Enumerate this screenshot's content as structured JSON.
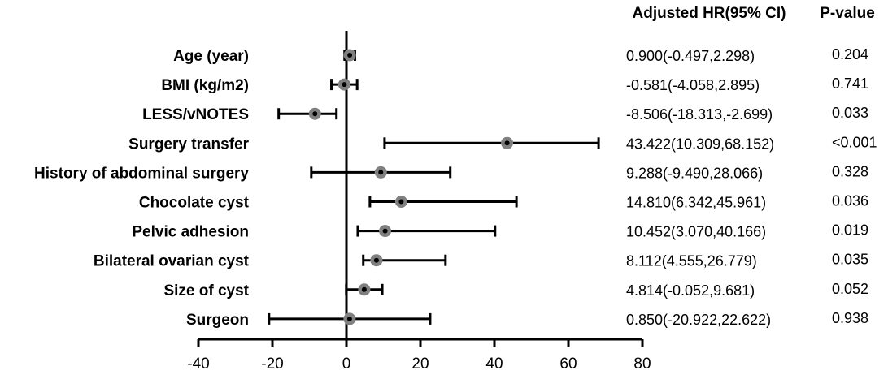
{
  "chart_data": {
    "type": "forest",
    "headers": {
      "estimate": "Adjusted HR(95% CI)",
      "p_value": "P-value"
    },
    "rows": [
      {
        "label": "Age (year)",
        "estimate": 0.9,
        "lower": -0.497,
        "upper": 2.298,
        "ci_text": "0.900(-0.497,2.298)",
        "p_text": "0.204"
      },
      {
        "label": "BMI (kg/m2)",
        "estimate": -0.581,
        "lower": -4.058,
        "upper": 2.895,
        "ci_text": "-0.581(-4.058,2.895)",
        "p_text": "0.741"
      },
      {
        "label": "LESS/vNOTES",
        "estimate": -8.506,
        "lower": -18.313,
        "upper": -2.699,
        "ci_text": "-8.506(-18.313,-2.699)",
        "p_text": "0.033"
      },
      {
        "label": "Surgery transfer",
        "estimate": 43.422,
        "lower": 10.309,
        "upper": 68.152,
        "ci_text": "43.422(10.309,68.152)",
        "p_text": "<0.001"
      },
      {
        "label": "History of abdominal surgery",
        "estimate": 9.288,
        "lower": -9.49,
        "upper": 28.066,
        "ci_text": "9.288(-9.490,28.066)",
        "p_text": "0.328"
      },
      {
        "label": "Chocolate cyst",
        "estimate": 14.81,
        "lower": 6.342,
        "upper": 45.961,
        "ci_text": "14.810(6.342,45.961)",
        "p_text": "0.036"
      },
      {
        "label": "Pelvic adhesion",
        "estimate": 10.452,
        "lower": 3.07,
        "upper": 40.166,
        "ci_text": "10.452(3.070,40.166)",
        "p_text": "0.019"
      },
      {
        "label": "Bilateral ovarian cyst",
        "estimate": 8.112,
        "lower": 4.555,
        "upper": 26.779,
        "ci_text": "8.112(4.555,26.779)",
        "p_text": "0.035"
      },
      {
        "label": "Size of cyst",
        "estimate": 4.814,
        "lower": -0.052,
        "upper": 9.681,
        "ci_text": "4.814(-0.052,9.681)",
        "p_text": "0.052"
      },
      {
        "label": "Surgeon",
        "estimate": 0.85,
        "lower": -20.922,
        "upper": 22.622,
        "ci_text": "0.850(-20.922,22.622)",
        "p_text": "0.938"
      }
    ],
    "xlim": [
      -40,
      80
    ],
    "x_ticks": [
      -40,
      -20,
      0,
      20,
      40,
      60,
      80
    ],
    "x_tick_labels": [
      "-40",
      "-20",
      "0",
      "20",
      "40",
      "60",
      "80"
    ],
    "reference_line": 0,
    "colors": {
      "line": "#000000",
      "marker_fill": "#808080",
      "marker_center": "#000000"
    }
  }
}
